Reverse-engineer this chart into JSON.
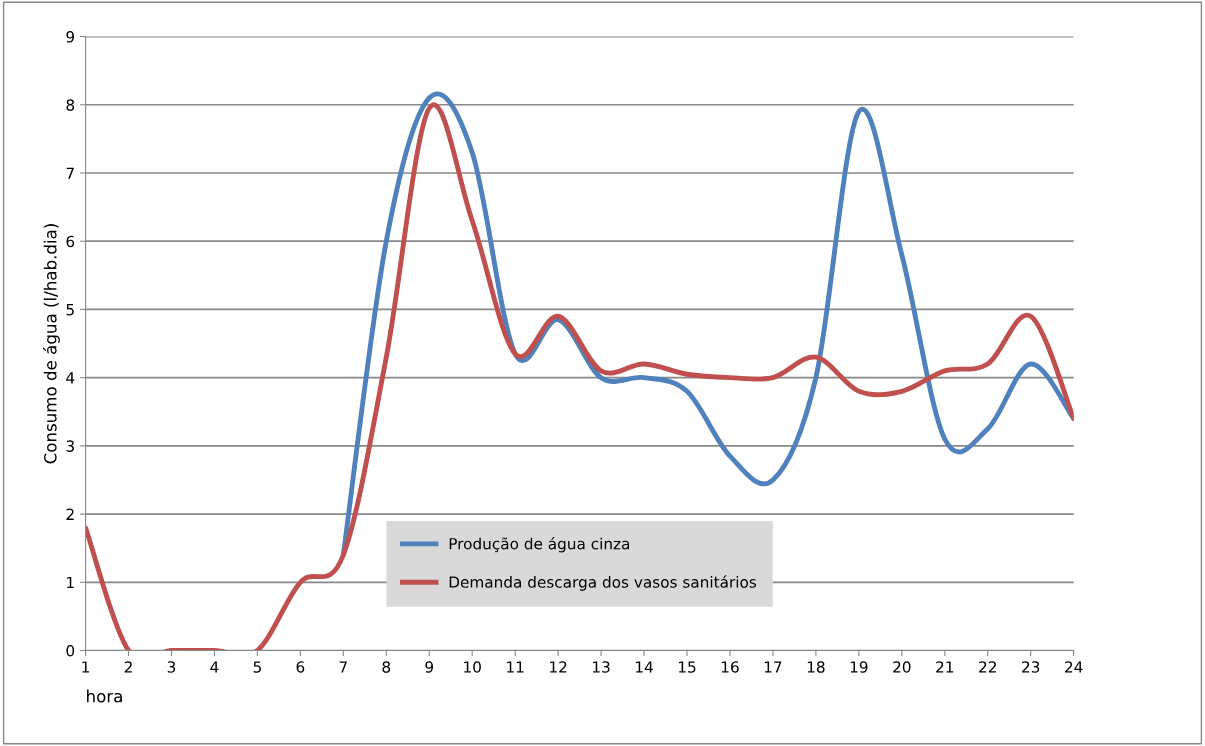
{
  "chart_data": {
    "type": "line",
    "ylabel": "Consumo de água (l/hab.dia)",
    "xlabel": "hora",
    "x": [
      1,
      2,
      3,
      4,
      5,
      6,
      7,
      8,
      9,
      10,
      11,
      12,
      13,
      14,
      15,
      16,
      17,
      18,
      19,
      20,
      21,
      22,
      23,
      24
    ],
    "series": [
      {
        "name": "Produção de água cinza",
        "color": "#4f81bd",
        "values": [
          null,
          null,
          null,
          null,
          null,
          null,
          1.4,
          6.0,
          8.1,
          7.3,
          4.35,
          4.85,
          4.0,
          4.0,
          3.8,
          2.85,
          2.5,
          4.0,
          7.9,
          5.8,
          3.1,
          3.25,
          4.2,
          3.4
        ]
      },
      {
        "name": "Demanda descarga dos vasos sanitários",
        "color": "#c0504d",
        "values": [
          1.8,
          0,
          0,
          0,
          0,
          1.0,
          1.4,
          4.3,
          7.95,
          6.3,
          4.35,
          4.9,
          4.1,
          4.2,
          4.05,
          4.0,
          4.0,
          4.3,
          3.8,
          3.8,
          4.1,
          4.2,
          4.9,
          3.4
        ]
      }
    ],
    "xlim": [
      1,
      24
    ],
    "xticks": [
      1,
      2,
      3,
      4,
      5,
      6,
      7,
      8,
      9,
      10,
      11,
      12,
      13,
      14,
      15,
      16,
      17,
      18,
      19,
      20,
      21,
      22,
      23,
      24
    ],
    "ylim": [
      0,
      9
    ],
    "yticks": [
      0,
      1,
      2,
      3,
      4,
      5,
      6,
      7,
      8,
      9
    ],
    "grid": "y",
    "legend": "bottom",
    "marker": "none",
    "line_style": "solid"
  }
}
